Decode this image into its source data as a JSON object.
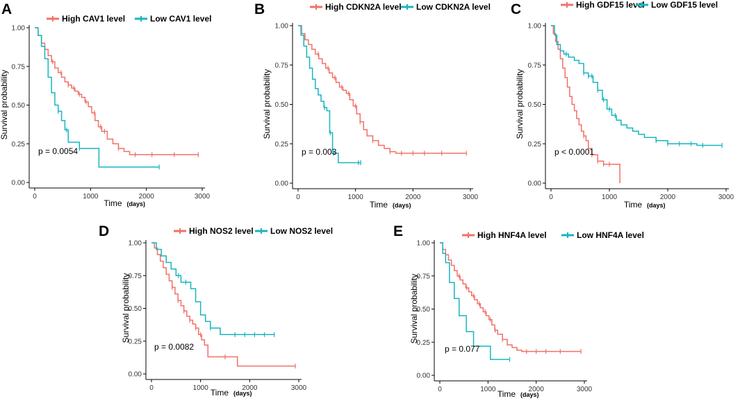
{
  "colors": {
    "high": "#f07167",
    "low": "#17b5bf"
  },
  "x_unit": "(days)",
  "chart_data": [
    {
      "panel": "A",
      "type": "line",
      "subtype": "kaplan-meier",
      "xlabel": "Time",
      "ylabel": "Survival probability",
      "xlim": [
        0,
        3000
      ],
      "ylim": [
        0,
        1
      ],
      "xticks": [
        0,
        1000,
        2000,
        3000
      ],
      "yticks": [
        0.0,
        0.25,
        0.5,
        0.75,
        1.0
      ],
      "legend": [
        "High CAV1 level",
        "Low CAV1 level"
      ],
      "pvalue": "p = 0.0054",
      "series": [
        {
          "name": "High CAV1 level",
          "group": "high",
          "x": [
            0,
            60,
            120,
            180,
            240,
            300,
            360,
            420,
            480,
            540,
            600,
            660,
            720,
            780,
            840,
            900,
            960,
            1020,
            1080,
            1140,
            1200,
            1300,
            1400,
            1500,
            1600,
            1700,
            1800,
            2200,
            2935
          ],
          "y": [
            1.0,
            0.95,
            0.9,
            0.86,
            0.82,
            0.78,
            0.74,
            0.71,
            0.68,
            0.65,
            0.63,
            0.61,
            0.59,
            0.57,
            0.55,
            0.52,
            0.49,
            0.45,
            0.4,
            0.36,
            0.33,
            0.28,
            0.25,
            0.22,
            0.2,
            0.18,
            0.18,
            0.18,
            0.18
          ],
          "censors": [
            320,
            470,
            600,
            700,
            800,
            920,
            1070,
            1180,
            1250,
            1500,
            1800,
            2100,
            2500,
            2930
          ]
        },
        {
          "name": "Low CAV1 level",
          "group": "low",
          "x": [
            0,
            60,
            120,
            180,
            240,
            300,
            360,
            420,
            480,
            540,
            600,
            800,
            1150,
            2230
          ],
          "y": [
            1.0,
            0.95,
            0.88,
            0.8,
            0.68,
            0.58,
            0.5,
            0.46,
            0.4,
            0.34,
            0.26,
            0.22,
            0.1,
            0.1
          ],
          "censors": [
            420,
            570,
            800,
            2230
          ]
        }
      ]
    },
    {
      "panel": "B",
      "type": "line",
      "subtype": "kaplan-meier",
      "xlabel": "Time",
      "ylabel": "Survival probability",
      "xlim": [
        0,
        3000
      ],
      "ylim": [
        0,
        1
      ],
      "xticks": [
        0,
        1000,
        2000,
        3000
      ],
      "yticks": [
        0.0,
        0.25,
        0.5,
        0.75,
        1.0
      ],
      "legend": [
        "High CDKN2A level",
        "Low  CDKN2A level"
      ],
      "pvalue": "p = 0.003",
      "series": [
        {
          "name": "High CDKN2A level",
          "group": "high",
          "x": [
            0,
            60,
            120,
            180,
            240,
            300,
            360,
            420,
            480,
            540,
            600,
            660,
            720,
            780,
            840,
            900,
            960,
            1020,
            1080,
            1140,
            1200,
            1300,
            1400,
            1500,
            1600,
            1700,
            1800,
            2200,
            2930
          ],
          "y": [
            1.0,
            0.95,
            0.91,
            0.88,
            0.85,
            0.82,
            0.79,
            0.76,
            0.73,
            0.7,
            0.67,
            0.64,
            0.61,
            0.59,
            0.57,
            0.53,
            0.49,
            0.44,
            0.39,
            0.34,
            0.3,
            0.27,
            0.24,
            0.22,
            0.2,
            0.19,
            0.19,
            0.19,
            0.19
          ],
          "censors": [
            350,
            520,
            640,
            760,
            880,
            1000,
            1080,
            1300,
            1600,
            1800,
            2000,
            2200,
            2500,
            2930
          ]
        },
        {
          "name": "Low  CDKN2A level",
          "group": "low",
          "x": [
            0,
            50,
            100,
            150,
            200,
            250,
            300,
            350,
            400,
            450,
            500,
            550,
            600,
            700,
            1090
          ],
          "y": [
            1.0,
            0.94,
            0.87,
            0.8,
            0.73,
            0.66,
            0.6,
            0.56,
            0.52,
            0.48,
            0.46,
            0.32,
            0.19,
            0.13,
            0.13
          ],
          "censors": [
            460,
            560,
            620,
            1050,
            1090
          ]
        }
      ]
    },
    {
      "panel": "C",
      "type": "line",
      "subtype": "kaplan-meier",
      "xlabel": "Time",
      "ylabel": "Survival probability",
      "xlim": [
        0,
        3000
      ],
      "ylim": [
        0,
        1
      ],
      "xticks": [
        0,
        1000,
        2000,
        3000
      ],
      "yticks": [
        0.0,
        0.25,
        0.5,
        0.75,
        1.0
      ],
      "legend": [
        "High GDF15 level",
        "Low GDF15 level"
      ],
      "pvalue": "p < 0.0001",
      "series": [
        {
          "name": "High GDF15 level",
          "group": "high",
          "x": [
            0,
            40,
            80,
            120,
            160,
            200,
            240,
            280,
            320,
            360,
            400,
            440,
            480,
            520,
            560,
            600,
            640,
            700,
            800,
            900,
            1000,
            1180
          ],
          "y": [
            1.0,
            0.95,
            0.9,
            0.85,
            0.79,
            0.73,
            0.67,
            0.61,
            0.55,
            0.5,
            0.46,
            0.41,
            0.37,
            0.33,
            0.3,
            0.27,
            0.22,
            0.18,
            0.14,
            0.12,
            0.12,
            0.0
          ],
          "censors": [
            560,
            640,
            700,
            800,
            900,
            1000
          ]
        },
        {
          "name": "Low GDF15 level",
          "group": "low",
          "x": [
            0,
            60,
            100,
            160,
            220,
            300,
            400,
            480,
            560,
            640,
            720,
            800,
            880,
            960,
            1040,
            1120,
            1200,
            1300,
            1400,
            1500,
            1600,
            1800,
            2000,
            2500,
            2930
          ],
          "y": [
            1.0,
            0.94,
            0.88,
            0.84,
            0.82,
            0.8,
            0.78,
            0.76,
            0.7,
            0.68,
            0.64,
            0.59,
            0.53,
            0.47,
            0.43,
            0.4,
            0.37,
            0.35,
            0.33,
            0.31,
            0.29,
            0.27,
            0.25,
            0.24,
            0.24
          ],
          "censors": [
            260,
            560,
            640,
            700,
            800,
            900,
            1000,
            1100,
            1800,
            2000,
            2200,
            2400,
            2600,
            2930
          ]
        }
      ]
    },
    {
      "panel": "D",
      "type": "line",
      "subtype": "kaplan-meier",
      "xlabel": "Time",
      "ylabel": "Survival probability",
      "xlim": [
        0,
        3000
      ],
      "ylim": [
        0,
        1
      ],
      "xticks": [
        0,
        1000,
        2000,
        3000
      ],
      "yticks": [
        0.0,
        0.25,
        0.5,
        0.75,
        1.0
      ],
      "legend": [
        "High NOS2 level",
        "Low NOS2 level"
      ],
      "pvalue": "p = 0.0082",
      "series": [
        {
          "name": "High NOS2 level",
          "group": "high",
          "x": [
            0,
            60,
            120,
            180,
            240,
            300,
            360,
            420,
            480,
            540,
            600,
            660,
            720,
            780,
            840,
            900,
            960,
            1020,
            1080,
            1150,
            1500,
            1750,
            2930
          ],
          "y": [
            1.0,
            0.96,
            0.91,
            0.86,
            0.81,
            0.76,
            0.71,
            0.66,
            0.61,
            0.56,
            0.52,
            0.48,
            0.44,
            0.41,
            0.38,
            0.35,
            0.3,
            0.26,
            0.22,
            0.13,
            0.13,
            0.06,
            0.06
          ],
          "censors": [
            420,
            540,
            660,
            780,
            900,
            1000,
            1500,
            2930
          ]
        },
        {
          "name": "Low NOS2 level",
          "group": "low",
          "x": [
            0,
            100,
            200,
            300,
            400,
            500,
            600,
            700,
            800,
            900,
            1000,
            1100,
            1200,
            1400,
            1600,
            2500
          ],
          "y": [
            1.0,
            0.95,
            0.9,
            0.85,
            0.8,
            0.75,
            0.7,
            0.7,
            0.65,
            0.55,
            0.45,
            0.4,
            0.35,
            0.3,
            0.3,
            0.3
          ],
          "censors": [
            550,
            700,
            1200,
            1700,
            1900,
            2100,
            2300,
            2500
          ]
        }
      ]
    },
    {
      "panel": "E",
      "type": "line",
      "subtype": "kaplan-meier",
      "xlabel": "Time",
      "ylabel": "Survival probability",
      "xlim": [
        0,
        3000
      ],
      "ylim": [
        0,
        1
      ],
      "xticks": [
        0,
        1000,
        2000,
        3000
      ],
      "yticks": [
        0.0,
        0.25,
        0.5,
        0.75,
        1.0
      ],
      "legend": [
        "High HNF4A level",
        "Low  HNF4A level"
      ],
      "pvalue": "p = 0.077",
      "series": [
        {
          "name": "High HNF4A level",
          "group": "high",
          "x": [
            0,
            60,
            120,
            180,
            240,
            300,
            360,
            420,
            480,
            540,
            600,
            660,
            720,
            780,
            840,
            900,
            960,
            1020,
            1080,
            1140,
            1200,
            1300,
            1400,
            1500,
            1600,
            1700,
            1800,
            2200,
            2930
          ],
          "y": [
            1.0,
            0.95,
            0.91,
            0.87,
            0.83,
            0.79,
            0.75,
            0.72,
            0.69,
            0.66,
            0.63,
            0.6,
            0.57,
            0.54,
            0.51,
            0.48,
            0.45,
            0.42,
            0.38,
            0.34,
            0.31,
            0.27,
            0.23,
            0.21,
            0.19,
            0.18,
            0.18,
            0.18,
            0.18
          ],
          "censors": [
            400,
            560,
            700,
            820,
            940,
            1050,
            1150,
            1300,
            1800,
            2000,
            2200,
            2500,
            2930
          ]
        },
        {
          "name": "Low  HNF4A level",
          "group": "low",
          "x": [
            0,
            60,
            120,
            200,
            300,
            400,
            550,
            700,
            1050,
            1450
          ],
          "y": [
            1.0,
            0.92,
            0.85,
            0.7,
            0.58,
            0.45,
            0.33,
            0.22,
            0.12,
            0.12
          ],
          "censors": [
            1450
          ]
        }
      ]
    }
  ]
}
